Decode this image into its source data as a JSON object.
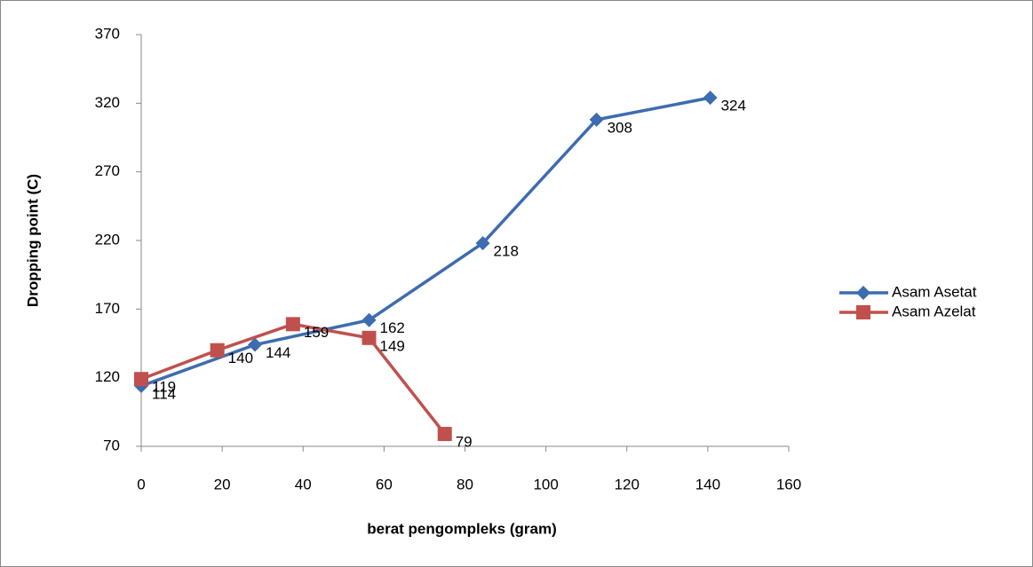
{
  "chart_data": {
    "type": "line",
    "x_label": "berat pengompleks (gram)",
    "y_label": "Dropping point (C)",
    "xlim": [
      0,
      160
    ],
    "xticks": [
      0,
      20,
      40,
      60,
      80,
      100,
      120,
      140,
      160
    ],
    "ylim": [
      70,
      370
    ],
    "yticks": [
      70,
      120,
      170,
      220,
      270,
      320,
      370
    ],
    "grid": false,
    "legend": "right",
    "series": [
      {
        "name": "Asam Asetat",
        "color": "#3d6cb0",
        "marker": "diamond",
        "x": [
          0,
          28.1,
          56.3,
          84.4,
          112.5,
          140.6
        ],
        "values": [
          114,
          144,
          162,
          218,
          308,
          324
        ]
      },
      {
        "name": "Asam Azelat",
        "color": "#c0504d",
        "marker": "square",
        "x": [
          0,
          18.8,
          37.5,
          56.3,
          75
        ],
        "values": [
          119,
          140,
          159,
          149,
          79
        ]
      }
    ]
  }
}
